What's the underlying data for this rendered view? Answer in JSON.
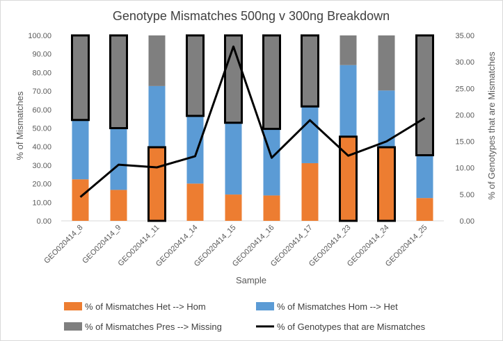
{
  "chart_data": {
    "type": "bar",
    "stacked": true,
    "title": "Genotype Mismatches 500ng v 300ng Breakdown",
    "xlabel": "Sample",
    "ylabel": "% of Mismatches",
    "y2label": "% of Genotypes  that are Mismatches",
    "ylim": [
      0,
      100
    ],
    "y2lim": [
      0,
      35
    ],
    "yticks": [
      "0.00",
      "10.00",
      "20.00",
      "30.00",
      "40.00",
      "50.00",
      "60.00",
      "70.00",
      "80.00",
      "90.00",
      "100.00"
    ],
    "y2ticks": [
      "0.00",
      "5.00",
      "10.00",
      "15.00",
      "20.00",
      "25.00",
      "30.00",
      "35.00"
    ],
    "categories": [
      "GEO020414_8",
      "GEO020414_9",
      "GEO020414_11",
      "GEO020414_14",
      "GEO020414_15",
      "GEO020414_16",
      "GEO020414_17",
      "GEO020414_23",
      "GEO020414_24",
      "GEO020414_25"
    ],
    "series": [
      {
        "name": "% of Mismatches Het --> Hom",
        "color": "#ed7d31",
        "values": [
          22.4,
          16.7,
          39.7,
          20.1,
          14.2,
          13.7,
          31.1,
          45.4,
          39.7,
          12.3
        ]
      },
      {
        "name": "% of Mismatches Hom --> Het",
        "color": "#5b9bd5",
        "values": [
          32.0,
          33.3,
          33.0,
          36.5,
          38.7,
          35.9,
          30.6,
          38.6,
          30.6,
          23.1
        ]
      },
      {
        "name": "% of Mismatches Pres --> Missing",
        "color": "#7f7f7f",
        "values": [
          45.6,
          50.0,
          27.3,
          43.4,
          47.1,
          50.4,
          38.3,
          16.0,
          29.7,
          64.6
        ]
      },
      {
        "name": "% of Genotypes that are Mismatches",
        "type": "line",
        "axis": "secondary",
        "color": "#000000",
        "values": [
          4.5,
          10.6,
          10.1,
          12.2,
          32.9,
          11.9,
          19.0,
          12.3,
          15.0,
          19.4
        ]
      }
    ],
    "highlighted_segments": [
      {
        "category": "GEO020414_8",
        "series": "% of Mismatches Pres --> Missing"
      },
      {
        "category": "GEO020414_9",
        "series": "% of Mismatches Pres --> Missing"
      },
      {
        "category": "GEO020414_11",
        "series": "% of Mismatches Het --> Hom"
      },
      {
        "category": "GEO020414_14",
        "series": "% of Mismatches Pres --> Missing"
      },
      {
        "category": "GEO020414_15",
        "series": "% of Mismatches Pres --> Missing"
      },
      {
        "category": "GEO020414_16",
        "series": "% of Mismatches Pres --> Missing"
      },
      {
        "category": "GEO020414_17",
        "series": "% of Mismatches Pres --> Missing"
      },
      {
        "category": "GEO020414_23",
        "series": "% of Mismatches Het --> Hom"
      },
      {
        "category": "GEO020414_24",
        "series": "% of Mismatches Het --> Hom"
      },
      {
        "category": "GEO020414_25",
        "series": "% of Mismatches Pres --> Missing"
      }
    ],
    "grid": false,
    "legend_position": "bottom"
  }
}
